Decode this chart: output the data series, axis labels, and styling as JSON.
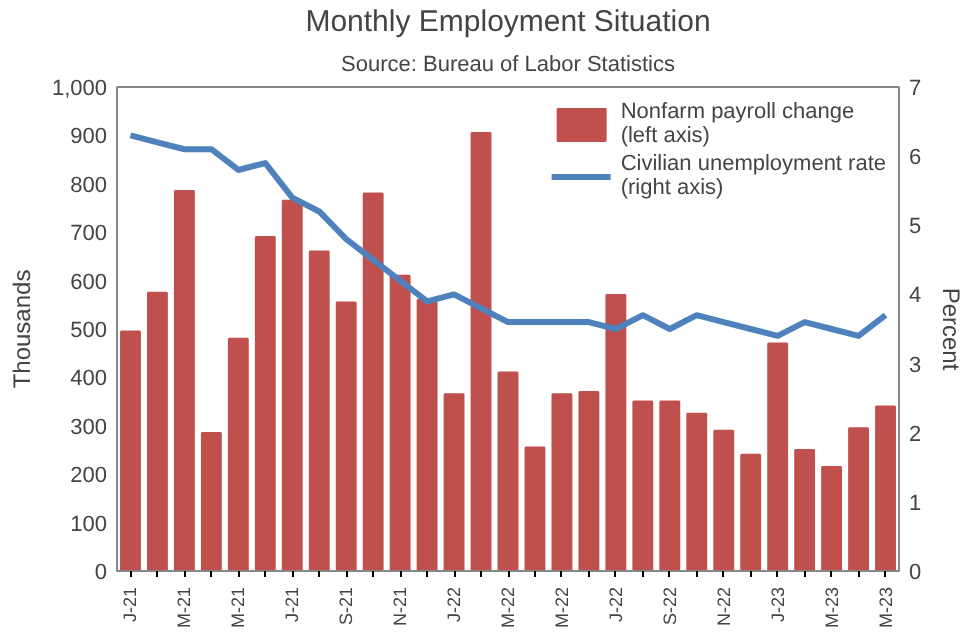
{
  "chart_data": {
    "type": "bar",
    "title": "Monthly Employment Situation",
    "subtitle": "Source: Bureau of Labor Statistics",
    "ylabel": "Thousands",
    "y2label": "Percent",
    "categories": [
      "J-21",
      null,
      "M-21",
      null,
      "M-21",
      null,
      "J-21",
      null,
      "S-21",
      null,
      "N-21",
      null,
      "J-22",
      null,
      "M-22",
      null,
      "M-22",
      null,
      "J-22",
      null,
      "S-22",
      null,
      "N-22",
      null,
      "J-23",
      null,
      "M-23",
      null,
      "M-23"
    ],
    "series": [
      {
        "name": "Nonfarm payroll change (left axis)",
        "color": "#c0504d",
        "values": [
          495,
          575,
          785,
          285,
          480,
          690,
          765,
          660,
          555,
          780,
          610,
          560,
          365,
          905,
          410,
          255,
          365,
          370,
          570,
          350,
          350,
          325,
          290,
          240,
          470,
          250,
          215,
          295,
          340
        ]
      },
      {
        "name": "Civilian unemployment rate (right axis)",
        "type": "line",
        "axis": "y2",
        "color": "#4f81bd",
        "values": [
          6.3,
          6.2,
          6.1,
          6.1,
          5.8,
          5.9,
          5.4,
          5.2,
          4.8,
          4.5,
          4.2,
          3.9,
          4.0,
          3.8,
          3.6,
          3.6,
          3.6,
          3.6,
          3.5,
          3.7,
          3.5,
          3.7,
          3.6,
          3.5,
          3.4,
          3.6,
          3.5,
          3.4,
          3.7
        ]
      }
    ],
    "ylim": [
      0,
      1000
    ],
    "yticks": [
      0,
      100,
      200,
      300,
      400,
      500,
      600,
      700,
      800,
      900,
      {
        "value": 1000,
        "label": "1,000"
      }
    ],
    "y2lim": [
      0,
      7
    ],
    "y2ticks": [
      0,
      1,
      2,
      3,
      4,
      5,
      6,
      7
    ],
    "grid": false,
    "legend": "top right"
  }
}
